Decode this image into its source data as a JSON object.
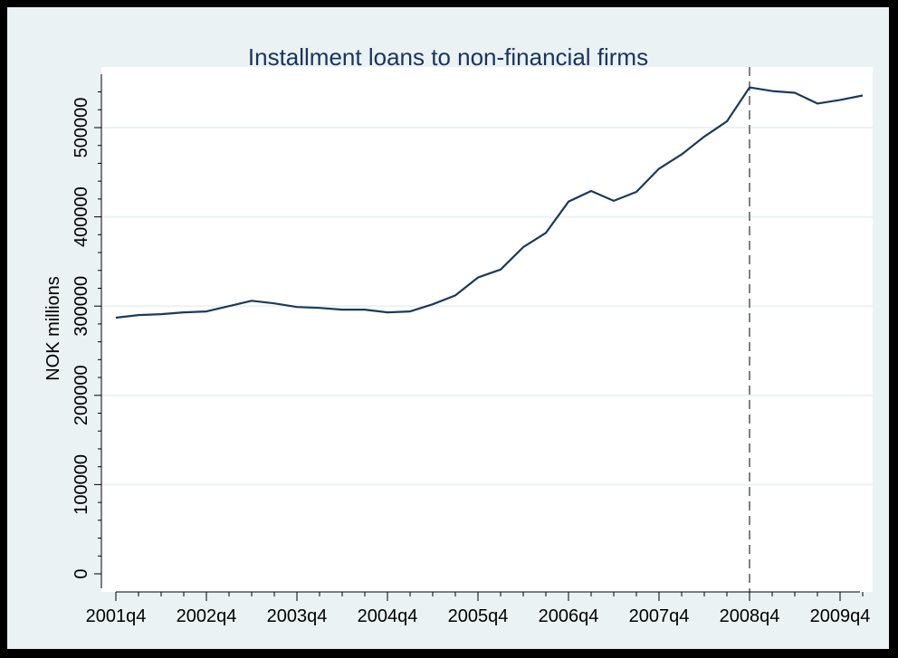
{
  "chart_data": {
    "type": "line",
    "title": "Installment loans to non-financial firms",
    "xlabel": "",
    "ylabel": "NOK millions",
    "x_ticks": [
      "2001q4",
      "2002q4",
      "2003q4",
      "2004q4",
      "2005q4",
      "2006q4",
      "2007q4",
      "2008q4",
      "2009q4"
    ],
    "y_ticks": [
      "0",
      "100000",
      "200000",
      "300000",
      "400000",
      "500000"
    ],
    "ylim": [
      0,
      550000
    ],
    "xlim": [
      "2001q4",
      "2010q1"
    ],
    "grid": true,
    "reference_line": {
      "x": "2008q4",
      "style": "dashed",
      "color": "#808080"
    },
    "series": [
      {
        "color": "#1a3a5c",
        "x": [
          "2001q4",
          "2002q1",
          "2002q2",
          "2002q3",
          "2002q4",
          "2003q1",
          "2003q2",
          "2003q3",
          "2003q4",
          "2004q1",
          "2004q2",
          "2004q3",
          "2004q4",
          "2005q1",
          "2005q2",
          "2005q3",
          "2005q4",
          "2006q1",
          "2006q2",
          "2006q3",
          "2006q4",
          "2007q1",
          "2007q2",
          "2007q3",
          "2007q4",
          "2008q1",
          "2008q2",
          "2008q3",
          "2008q4",
          "2009q1",
          "2009q2",
          "2009q3",
          "2009q4",
          "2010q1"
        ],
        "values": [
          287000,
          290000,
          291000,
          293000,
          294000,
          300000,
          306000,
          303000,
          299000,
          298000,
          296000,
          296000,
          293000,
          294000,
          302000,
          312000,
          332000,
          341000,
          366000,
          382000,
          417000,
          429000,
          418000,
          428000,
          454000,
          470000,
          490000,
          507000,
          545000,
          541000,
          539000,
          527000,
          531000,
          536000
        ]
      }
    ]
  }
}
